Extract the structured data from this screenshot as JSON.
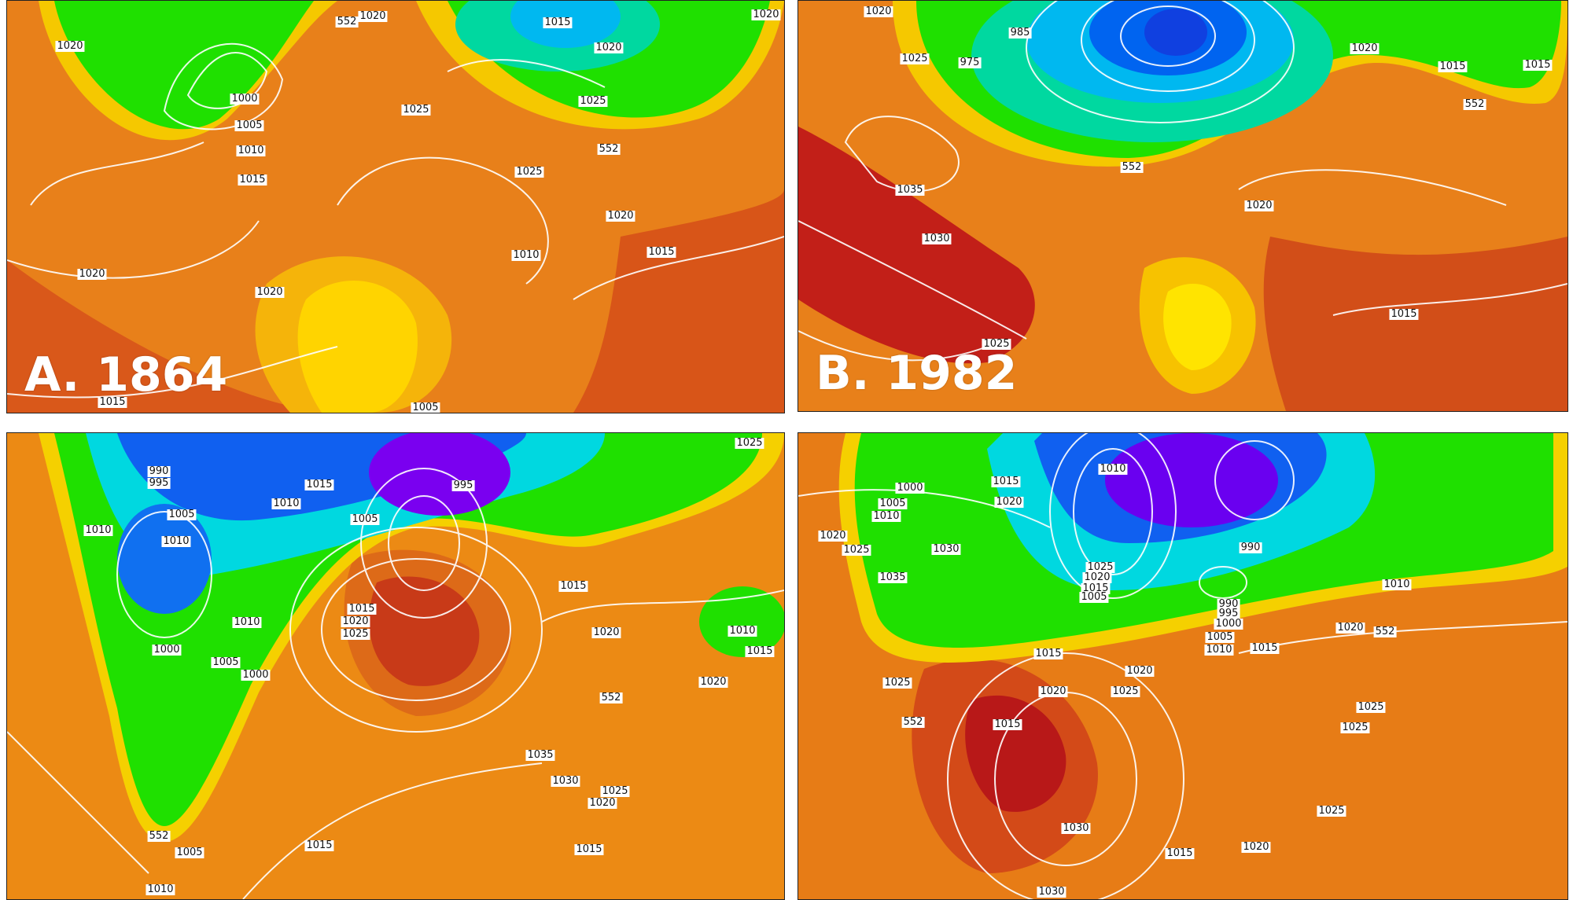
{
  "panels": [
    {
      "label": "A. 1864",
      "isobars": [
        "1020",
        "1015",
        "1020",
        "552",
        "1020",
        "1000",
        "1005",
        "1010",
        "1015",
        "1025",
        "1025",
        "1020",
        "552",
        "1025",
        "1020",
        "1010",
        "1015",
        "1020",
        "1020",
        "1015",
        "1005"
      ]
    },
    {
      "label": "B. 1982",
      "isobars": [
        "1020",
        "985",
        "975",
        "1025",
        "1020",
        "1015",
        "1015",
        "552",
        "552",
        "1035",
        "1030",
        "1020",
        "1025",
        "1015"
      ]
    },
    {
      "label": "",
      "isobars": [
        "1025",
        "990",
        "995",
        "1015",
        "1005",
        "1010",
        "995",
        "1010",
        "1005",
        "1015",
        "1015",
        "1020",
        "1025",
        "1010",
        "1020",
        "1010",
        "1015",
        "1000",
        "1005",
        "1000",
        "1010",
        "1020",
        "552",
        "1035",
        "1030",
        "1025",
        "1020",
        "552",
        "1005",
        "1015",
        "1015",
        "1010"
      ]
    },
    {
      "label": "",
      "isobars": [
        "1000",
        "1010",
        "1015",
        "1020",
        "1005",
        "1010",
        "1020",
        "1025",
        "1030",
        "1035",
        "1025",
        "1020",
        "1015",
        "1005",
        "990",
        "990",
        "995",
        "1000",
        "1005",
        "1010",
        "1015",
        "1010",
        "1020",
        "552",
        "1015",
        "1020",
        "1025",
        "1020",
        "1025",
        "552",
        "1015",
        "1025",
        "1030",
        "1015",
        "1020",
        "1025",
        "1030",
        "1025"
      ]
    }
  ],
  "colors": {
    "green": "#1fe000",
    "yellow": "#fff000",
    "orange": "#f08a12",
    "red": "#c01818",
    "blue": "#0050f0",
    "purple": "#7a00f0",
    "cyan": "#00d8f0"
  }
}
